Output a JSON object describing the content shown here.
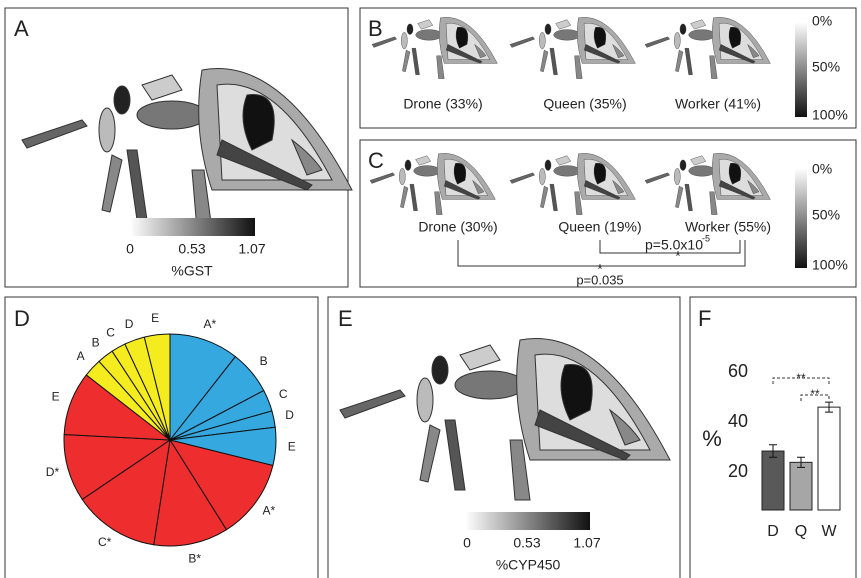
{
  "panels": {
    "A": {
      "letter": "A",
      "colorbar": [
        "0",
        "0.53",
        "1.07"
      ],
      "colorbar_label": "%GST"
    },
    "B": {
      "letter": "B",
      "labels": [
        "Drone (33%)",
        "Queen (35%)",
        "Worker (41%)"
      ],
      "colorbar": [
        "0%",
        "50%",
        "100%"
      ]
    },
    "C": {
      "letter": "C",
      "labels": [
        "Drone (30%)",
        "Queen (19%)",
        "Worker (55%)"
      ],
      "colorbar": [
        "0%",
        "50%",
        "100%"
      ],
      "p1": "p=5.0x10",
      "p1_exp": "-5",
      "star1": "*",
      "star2": "*",
      "p2": "p=0.035"
    },
    "D": {
      "letter": "D"
    },
    "E": {
      "letter": "E",
      "colorbar": [
        "0",
        "0.53",
        "1.07"
      ],
      "colorbar_label": "%CYP450"
    },
    "F": {
      "letter": "F"
    }
  },
  "chart_data": [
    {
      "type": "pie",
      "categories": [
        "A*",
        "B",
        "C",
        "D",
        "E",
        "A*",
        "B*",
        "C*",
        "D*",
        "E",
        "A",
        "B",
        "C",
        "D",
        "E"
      ],
      "values": [
        10.6,
        6.7,
        3.3,
        2.5,
        5.8,
        12.2,
        11.4,
        13.1,
        10.3,
        9.7,
        2.8,
        2.5,
        2.2,
        3.1,
        3.9
      ],
      "colors": [
        "#35a8e0",
        "#35a8e0",
        "#35a8e0",
        "#35a8e0",
        "#35a8e0",
        "#ee2e2e",
        "#ee2e2e",
        "#ee2e2e",
        "#ee2e2e",
        "#ee2e2e",
        "#f5ec1f",
        "#f5ec1f",
        "#f5ec1f",
        "#f5ec1f",
        "#f5ec1f"
      ]
    },
    {
      "type": "bar",
      "ylabel": "%",
      "categories": [
        "D",
        "Q",
        "W"
      ],
      "values": [
        28.5,
        24,
        46
      ],
      "errors": [
        2.5,
        2,
        2
      ],
      "colors": [
        "#595959",
        "#a6a6a6",
        "#ffffff"
      ],
      "ylim": [
        5,
        60
      ],
      "yticks": [
        20,
        40,
        60
      ],
      "annotations": [
        "**",
        "**"
      ]
    }
  ]
}
